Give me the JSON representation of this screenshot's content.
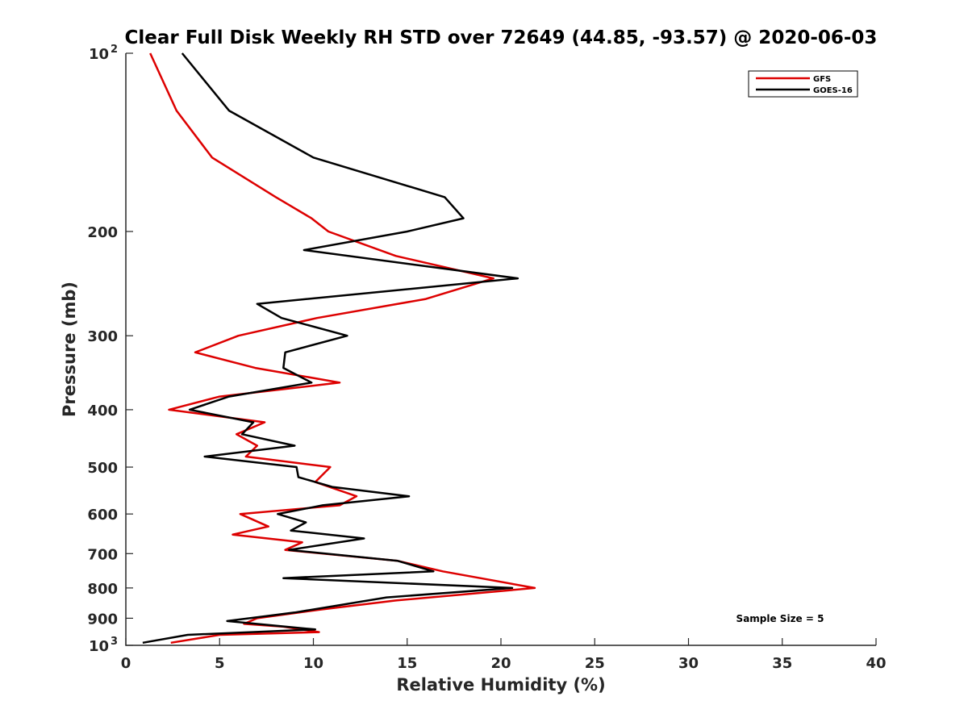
{
  "chart_data": {
    "type": "line",
    "title": "Clear Full Disk Weekly RH STD over 72649 (44.85, -93.57) @ 2020-06-03",
    "xlabel": "Relative Humidity (%)",
    "ylabel": "Pressure (mb)",
    "xlim": [
      0,
      40
    ],
    "ylim": [
      100,
      1000
    ],
    "y_scale": "log",
    "y_reversed": true,
    "grid": false,
    "legend_position": "top-right",
    "annotation": "Sample Size = 5",
    "x_ticks": [
      {
        "value": 0,
        "label": "0"
      },
      {
        "value": 5,
        "label": "5"
      },
      {
        "value": 10,
        "label": "10"
      },
      {
        "value": 15,
        "label": "15"
      },
      {
        "value": 20,
        "label": "20"
      },
      {
        "value": 25,
        "label": "25"
      },
      {
        "value": 30,
        "label": "30"
      },
      {
        "value": 35,
        "label": "35"
      },
      {
        "value": 40,
        "label": "40"
      }
    ],
    "y_ticks": [
      {
        "value": 100,
        "label": "10",
        "sup": "2"
      },
      {
        "value": 200,
        "label": "200"
      },
      {
        "value": 300,
        "label": "300"
      },
      {
        "value": 400,
        "label": "400"
      },
      {
        "value": 500,
        "label": "500"
      },
      {
        "value": 600,
        "label": "600"
      },
      {
        "value": 700,
        "label": "700"
      },
      {
        "value": 800,
        "label": "800"
      },
      {
        "value": 900,
        "label": "900"
      },
      {
        "value": 1000,
        "label": "10",
        "sup": "3"
      }
    ],
    "series": [
      {
        "name": "GFS",
        "color": "#dd0000",
        "points": [
          [
            1.3,
            100
          ],
          [
            2.7,
            125
          ],
          [
            4.6,
            150
          ],
          [
            8.0,
            175
          ],
          [
            9.9,
            190
          ],
          [
            10.8,
            200
          ],
          [
            14.4,
            220
          ],
          [
            19.6,
            240
          ],
          [
            16.0,
            260
          ],
          [
            10.2,
            280
          ],
          [
            6.0,
            300
          ],
          [
            3.7,
            320
          ],
          [
            6.9,
            340
          ],
          [
            11.4,
            360
          ],
          [
            5.0,
            380
          ],
          [
            2.3,
            400
          ],
          [
            7.4,
            420
          ],
          [
            5.9,
            440
          ],
          [
            7.0,
            460
          ],
          [
            6.4,
            480
          ],
          [
            10.9,
            500
          ],
          [
            10.1,
            530
          ],
          [
            12.3,
            560
          ],
          [
            11.4,
            580
          ],
          [
            6.1,
            600
          ],
          [
            7.6,
            630
          ],
          [
            5.7,
            650
          ],
          [
            9.4,
            670
          ],
          [
            8.5,
            690
          ],
          [
            14.5,
            720
          ],
          [
            16.9,
            750
          ],
          [
            21.8,
            800
          ],
          [
            14.4,
            840
          ],
          [
            10.4,
            870
          ],
          [
            7.0,
            900
          ],
          [
            6.3,
            920
          ],
          [
            8.4,
            930
          ],
          [
            10.3,
            950
          ],
          [
            5.0,
            960
          ],
          [
            2.4,
            990
          ]
        ]
      },
      {
        "name": "GOES-16",
        "color": "#000000",
        "points": [
          [
            3.0,
            100
          ],
          [
            5.5,
            125
          ],
          [
            10.0,
            150
          ],
          [
            17.0,
            175
          ],
          [
            18.0,
            190
          ],
          [
            15.0,
            200
          ],
          [
            9.5,
            215
          ],
          [
            20.9,
            240
          ],
          [
            7.0,
            265
          ],
          [
            8.3,
            280
          ],
          [
            11.8,
            300
          ],
          [
            8.5,
            320
          ],
          [
            8.4,
            340
          ],
          [
            9.9,
            360
          ],
          [
            5.5,
            380
          ],
          [
            3.4,
            400
          ],
          [
            6.8,
            420
          ],
          [
            6.2,
            440
          ],
          [
            9.0,
            460
          ],
          [
            4.2,
            480
          ],
          [
            9.1,
            500
          ],
          [
            9.2,
            520
          ],
          [
            11.0,
            540
          ],
          [
            15.1,
            560
          ],
          [
            10.5,
            580
          ],
          [
            8.1,
            600
          ],
          [
            9.6,
            620
          ],
          [
            8.8,
            640
          ],
          [
            12.7,
            660
          ],
          [
            8.7,
            690
          ],
          [
            14.5,
            720
          ],
          [
            16.4,
            750
          ],
          [
            8.4,
            770
          ],
          [
            20.6,
            800
          ],
          [
            13.9,
            830
          ],
          [
            9.0,
            880
          ],
          [
            5.4,
            910
          ],
          [
            10.1,
            940
          ],
          [
            3.3,
            960
          ],
          [
            0.9,
            990
          ]
        ]
      }
    ]
  }
}
